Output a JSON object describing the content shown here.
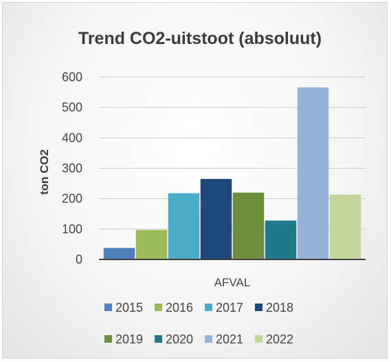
{
  "chart_data": {
    "type": "bar",
    "title": "Trend CO2-uitstoot (absoluut)",
    "ylabel": "ton CO2",
    "xlabel": "",
    "categories": [
      "AFVAL"
    ],
    "ylim": [
      0,
      600
    ],
    "yticks": [
      0,
      100,
      200,
      300,
      400,
      500,
      600
    ],
    "grid": true,
    "legend": "bottom",
    "series": [
      {
        "name": "2015",
        "values": [
          38
        ],
        "color": "#4f81bd"
      },
      {
        "name": "2016",
        "values": [
          97
        ],
        "color": "#9bbb59"
      },
      {
        "name": "2017",
        "values": [
          218
        ],
        "color": "#4bacc6"
      },
      {
        "name": "2018",
        "values": [
          265
        ],
        "color": "#1f497d"
      },
      {
        "name": "2019",
        "values": [
          220
        ],
        "color": "#6b8e3a"
      },
      {
        "name": "2020",
        "values": [
          128
        ],
        "color": "#1f7a8c"
      },
      {
        "name": "2021",
        "values": [
          566
        ],
        "color": "#95b3d7"
      },
      {
        "name": "2022",
        "values": [
          213
        ],
        "color": "#c3d69b"
      }
    ]
  }
}
